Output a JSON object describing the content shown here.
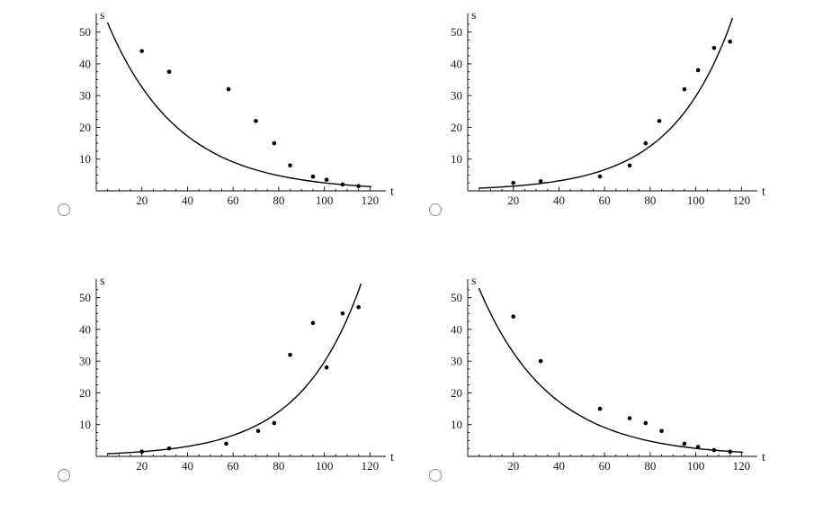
{
  "styles": {
    "background": "#ffffff",
    "curve_color": "#000000",
    "point_color": "#000000",
    "axis_color": "#000000",
    "radio_border": "#8f8f8f"
  },
  "options": [
    {
      "id": "option-1",
      "selected": false
    },
    {
      "id": "option-2",
      "selected": false
    },
    {
      "id": "option-3",
      "selected": false
    },
    {
      "id": "option-4",
      "selected": false
    }
  ],
  "chart_data": [
    {
      "id": "plot-top-left",
      "type": "scatter",
      "title": "",
      "x_label": "t",
      "y_label": "s",
      "x_range": [
        0,
        125
      ],
      "y_range": [
        0,
        55
      ],
      "x_ticks": [
        20,
        40,
        60,
        80,
        100,
        120
      ],
      "y_ticks": [
        10,
        20,
        30,
        40,
        50
      ],
      "grid": false,
      "curve": {
        "model": "exponential-decay",
        "formula": "s = 62*e^(-0.032 t)",
        "a": 62,
        "k": -0.032,
        "t_start": 5,
        "t_end": 121
      },
      "points": {
        "t": [
          20,
          32,
          58,
          70,
          78,
          85,
          95,
          101,
          108,
          115
        ],
        "s": [
          44,
          37.5,
          32,
          22,
          15,
          8,
          4.5,
          3.5,
          2,
          1.5
        ]
      }
    },
    {
      "id": "plot-top-right",
      "type": "scatter",
      "title": "",
      "x_label": "t",
      "y_label": "s",
      "x_range": [
        0,
        125
      ],
      "y_range": [
        0,
        55
      ],
      "x_ticks": [
        20,
        40,
        60,
        80,
        100,
        120
      ],
      "y_ticks": [
        10,
        20,
        30,
        40,
        50
      ],
      "grid": false,
      "curve": {
        "model": "exponential-growth",
        "formula": "s = 0.7*e^(0.0375 t)",
        "a": 0.7,
        "k": 0.0375,
        "t_start": 5,
        "t_end": 116
      },
      "points": {
        "t": [
          20,
          32,
          58,
          71,
          78,
          84,
          95,
          101,
          108,
          115
        ],
        "s": [
          2.5,
          3,
          4.5,
          8,
          15,
          22,
          32,
          38,
          45,
          47
        ]
      }
    },
    {
      "id": "plot-bottom-left",
      "type": "scatter",
      "title": "",
      "x_label": "t",
      "y_label": "s",
      "x_range": [
        0,
        125
      ],
      "y_range": [
        0,
        55
      ],
      "x_ticks": [
        20,
        40,
        60,
        80,
        100,
        120
      ],
      "y_ticks": [
        10,
        20,
        30,
        40,
        50
      ],
      "grid": false,
      "curve": {
        "model": "exponential-growth",
        "formula": "s = 0.7*e^(0.0375 t)",
        "a": 0.7,
        "k": 0.0375,
        "t_start": 5,
        "t_end": 117
      },
      "points": {
        "t": [
          20,
          32,
          57,
          71,
          78,
          85,
          95,
          101,
          108,
          115
        ],
        "s": [
          1.5,
          2.5,
          4,
          8,
          10.5,
          32,
          42,
          28,
          45,
          47
        ]
      }
    },
    {
      "id": "plot-bottom-right",
      "type": "scatter",
      "title": "",
      "x_label": "t",
      "y_label": "s",
      "x_range": [
        0,
        125
      ],
      "y_range": [
        0,
        55
      ],
      "x_ticks": [
        20,
        40,
        60,
        80,
        100,
        120
      ],
      "y_ticks": [
        10,
        20,
        30,
        40,
        50
      ],
      "grid": false,
      "curve": {
        "model": "exponential-decay",
        "formula": "s = 62*e^(-0.032 t)",
        "a": 62,
        "k": -0.032,
        "t_start": 5,
        "t_end": 121
      },
      "points": {
        "t": [
          20,
          32,
          58,
          71,
          78,
          85,
          95,
          101,
          108,
          115
        ],
        "s": [
          44,
          30,
          15,
          12,
          10.5,
          8,
          4,
          3,
          2,
          1.5
        ]
      }
    }
  ]
}
